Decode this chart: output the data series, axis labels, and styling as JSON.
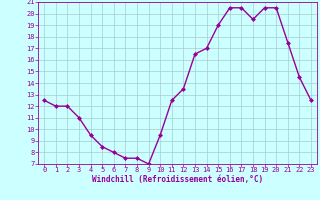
{
  "x": [
    0,
    1,
    2,
    3,
    4,
    5,
    6,
    7,
    8,
    9,
    10,
    11,
    12,
    13,
    14,
    15,
    16,
    17,
    18,
    19,
    20,
    21,
    22,
    23
  ],
  "y": [
    12.5,
    12.0,
    12.0,
    11.0,
    9.5,
    8.5,
    8.0,
    7.5,
    7.5,
    7.0,
    9.5,
    12.5,
    13.5,
    16.5,
    17.0,
    19.0,
    20.5,
    20.5,
    19.5,
    20.5,
    20.5,
    17.5,
    14.5,
    12.5
  ],
  "line_color": "#990099",
  "marker": "D",
  "marker_size": 2,
  "bg_color": "#ccffff",
  "grid_color": "#aacccc",
  "xlabel": "Windchill (Refroidissement éolien,°C)",
  "xlabel_color": "#990099",
  "tick_color": "#990099",
  "spine_color": "#990099",
  "ylim": [
    7,
    21
  ],
  "xlim": [
    -0.5,
    23.5
  ],
  "yticks": [
    7,
    8,
    9,
    10,
    11,
    12,
    13,
    14,
    15,
    16,
    17,
    18,
    19,
    20,
    21
  ],
  "xticks": [
    0,
    1,
    2,
    3,
    4,
    5,
    6,
    7,
    8,
    9,
    10,
    11,
    12,
    13,
    14,
    15,
    16,
    17,
    18,
    19,
    20,
    21,
    22,
    23
  ],
  "tick_fontsize": 5,
  "xlabel_fontsize": 5.5,
  "line_width": 1.0
}
